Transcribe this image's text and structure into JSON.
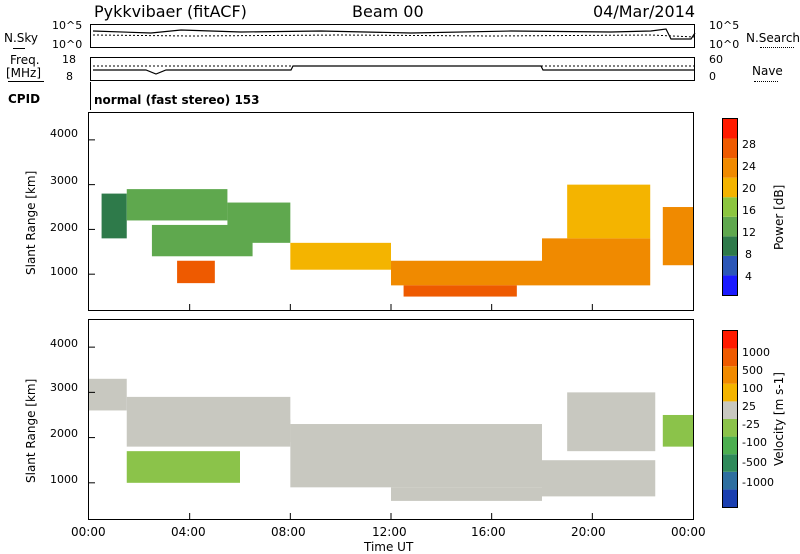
{
  "header": {
    "station": "Pykkvibaer (fitACF)",
    "beam": "Beam 00",
    "date": "04/Mar/2014"
  },
  "top_panels": {
    "nsky_label": "N.Sky",
    "nsearch_label": "N.Search",
    "nsky_ticks": [
      "10^5",
      "10^0"
    ],
    "nsearch_ticks": [
      "10^5",
      "10^0"
    ],
    "freq_label_1": "Freq.",
    "freq_label_2": "[MHz]",
    "freq_ticks": [
      "18",
      "8"
    ],
    "nave_label": "Nave",
    "nave_ticks": [
      "60",
      "0"
    ],
    "cpid_label": "CPID",
    "cpid_text": "normal (fast stereo) 153"
  },
  "power_panel": {
    "ylabel": "Slant Range [km]",
    "yticks": [
      "4000",
      "3000",
      "2000",
      "1000"
    ],
    "colorbar_label": "Power [dB]",
    "colorbar_ticks": [
      "28",
      "24",
      "20",
      "16",
      "12",
      "8",
      "4"
    ],
    "colors": [
      "#1a1aff",
      "#2b57b8",
      "#2e7a4a",
      "#5fa84e",
      "#8cc63f",
      "#f4b400",
      "#f08a00",
      "#ee5a00",
      "#ff1a00"
    ]
  },
  "velocity_panel": {
    "ylabel": "Slant Range [km]",
    "yticks": [
      "4000",
      "3000",
      "2000",
      "1000"
    ],
    "colorbar_label": "Velocity [m s-1]",
    "colorbar_ticks": [
      "1000",
      "500",
      "100",
      "25",
      "-25",
      "-100",
      "-500",
      "-1000"
    ],
    "colors": [
      "#1a3fb0",
      "#2e6fa0",
      "#2e8a5a",
      "#4caf50",
      "#8bc34a",
      "#c8c8c0",
      "#f4b400",
      "#f08a00",
      "#ee5a00",
      "#ff1a00"
    ]
  },
  "xaxis": {
    "label": "Time UT",
    "ticks": [
      "00:00",
      "04:00",
      "08:00",
      "12:00",
      "16:00",
      "20:00",
      "00:00"
    ]
  },
  "chart_data": [
    {
      "type": "heatmap",
      "name": "power",
      "xlabel": "Time UT",
      "ylabel": "Slant Range [km]",
      "colorbar_label": "Power [dB]",
      "xlim": [
        "00:00",
        "24:00"
      ],
      "ylim": [
        200,
        4600
      ],
      "clim": [
        0,
        32
      ],
      "bands": [
        {
          "t_start": 0.5,
          "t_end": 1.5,
          "r_start": 1800,
          "r_end": 2800,
          "value": 8
        },
        {
          "t_start": 1.5,
          "t_end": 5.5,
          "r_start": 2200,
          "r_end": 2900,
          "value": 12
        },
        {
          "t_start": 2.5,
          "t_end": 6.5,
          "r_start": 1400,
          "r_end": 2100,
          "value": 14
        },
        {
          "t_start": 5.5,
          "t_end": 8.0,
          "r_start": 1700,
          "r_end": 2600,
          "value": 14
        },
        {
          "t_start": 3.5,
          "t_end": 5.0,
          "r_start": 800,
          "r_end": 1300,
          "value": 26
        },
        {
          "t_start": 8.0,
          "t_end": 12.0,
          "r_start": 1100,
          "r_end": 1700,
          "value": 18
        },
        {
          "t_start": 12.0,
          "t_end": 18.0,
          "r_start": 750,
          "r_end": 1300,
          "value": 22
        },
        {
          "t_start": 12.5,
          "t_end": 17.0,
          "r_start": 500,
          "r_end": 750,
          "value": 28
        },
        {
          "t_start": 18.0,
          "t_end": 22.3,
          "r_start": 750,
          "r_end": 1800,
          "value": 24
        },
        {
          "t_start": 19.0,
          "t_end": 22.3,
          "r_start": 1800,
          "r_end": 3000,
          "value": 20
        },
        {
          "t_start": 22.8,
          "t_end": 24.0,
          "r_start": 1200,
          "r_end": 2500,
          "value": 22
        }
      ]
    },
    {
      "type": "heatmap",
      "name": "velocity",
      "xlabel": "Time UT",
      "ylabel": "Slant Range [km]",
      "colorbar_label": "Velocity [m s-1]",
      "xlim": [
        "00:00",
        "24:00"
      ],
      "ylim": [
        200,
        4600
      ],
      "clim": [
        -1000,
        1000
      ],
      "bands": [
        {
          "t_start": 0.0,
          "t_end": 1.5,
          "r_start": 2600,
          "r_end": 3300,
          "value": 0
        },
        {
          "t_start": 1.5,
          "t_end": 8.0,
          "r_start": 1800,
          "r_end": 2900,
          "value": 0
        },
        {
          "t_start": 1.5,
          "t_end": 6.0,
          "r_start": 1000,
          "r_end": 1700,
          "value": -100
        },
        {
          "t_start": 6.0,
          "t_end": 8.0,
          "r_start": 1900,
          "r_end": 2400,
          "value": 60
        },
        {
          "t_start": 8.0,
          "t_end": 18.0,
          "r_start": 900,
          "r_end": 2300,
          "value": 0
        },
        {
          "t_start": 12.0,
          "t_end": 18.0,
          "r_start": 600,
          "r_end": 900,
          "value": 0
        },
        {
          "t_start": 18.0,
          "t_end": 22.5,
          "r_start": 700,
          "r_end": 1500,
          "value": 0
        },
        {
          "t_start": 19.0,
          "t_end": 22.5,
          "r_start": 1700,
          "r_end": 3000,
          "value": 0
        },
        {
          "t_start": 22.8,
          "t_end": 24.0,
          "r_start": 1800,
          "r_end": 2500,
          "value": -150
        }
      ]
    }
  ]
}
